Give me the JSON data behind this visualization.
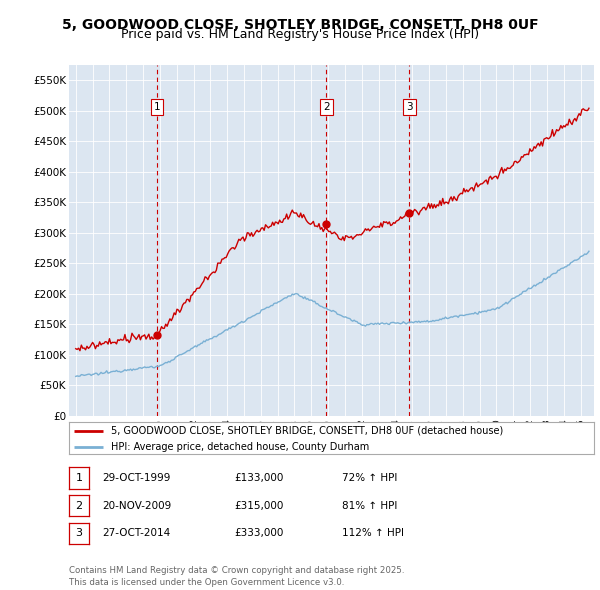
{
  "title_line1": "5, GOODWOOD CLOSE, SHOTLEY BRIDGE, CONSETT, DH8 0UF",
  "title_line2": "Price paid vs. HM Land Registry's House Price Index (HPI)",
  "ylim": [
    0,
    575000
  ],
  "yticks": [
    0,
    50000,
    100000,
    150000,
    200000,
    250000,
    300000,
    350000,
    400000,
    450000,
    500000,
    550000
  ],
  "ytick_labels": [
    "£0",
    "£50K",
    "£100K",
    "£150K",
    "£200K",
    "£250K",
    "£300K",
    "£350K",
    "£400K",
    "£450K",
    "£500K",
    "£550K"
  ],
  "plot_bg_color": "#dce6f1",
  "hpi_color": "#7ab0d4",
  "price_color": "#cc0000",
  "vline_color": "#cc0000",
  "sale_dates": [
    1999.83,
    2009.89,
    2014.83
  ],
  "sale_labels": [
    "1",
    "2",
    "3"
  ],
  "sale_prices": [
    133000,
    315000,
    333000
  ],
  "legend_label_price": "5, GOODWOOD CLOSE, SHOTLEY BRIDGE, CONSETT, DH8 0UF (detached house)",
  "legend_label_hpi": "HPI: Average price, detached house, County Durham",
  "table_rows": [
    [
      "1",
      "29-OCT-1999",
      "£133,000",
      "72% ↑ HPI"
    ],
    [
      "2",
      "20-NOV-2009",
      "£315,000",
      "81% ↑ HPI"
    ],
    [
      "3",
      "27-OCT-2014",
      "£333,000",
      "112% ↑ HPI"
    ]
  ],
  "footer_text": "Contains HM Land Registry data © Crown copyright and database right 2025.\nThis data is licensed under the Open Government Licence v3.0.",
  "title_fontsize": 10,
  "subtitle_fontsize": 9
}
